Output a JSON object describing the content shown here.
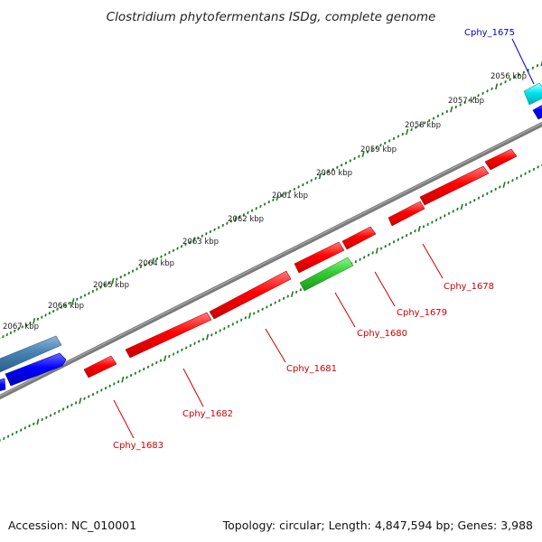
{
  "title": "Clostridium phytofermentans ISDg, complete genome",
  "footer": {
    "accession": "Accession: NC_010001",
    "summary": "Topology: circular; Length: 4,847,594 bp; Genes: 3,988"
  },
  "scale_labels": [
    "2056 kbp",
    "2057 kbp",
    "2058 kbp",
    "2059 kbp",
    "2060 kbp",
    "2061 kbp",
    "2062 kbp",
    "2063 kbp",
    "2064 kbp",
    "2065 kbp",
    "2066 kbp",
    "2067 kbp"
  ],
  "gene_labels": [
    {
      "id": "cphy-1675",
      "text": "Cphy_1675",
      "color": "#0000cc"
    },
    {
      "id": "cphy-1678",
      "text": "Cphy_1678",
      "color": "#cc0000"
    },
    {
      "id": "cphy-1679",
      "text": "Cphy_1679",
      "color": "#cc0000"
    },
    {
      "id": "cphy-1680",
      "text": "Cphy_1680",
      "color": "#cc0000"
    },
    {
      "id": "cphy-1681",
      "text": "Cphy_1681",
      "color": "#cc0000"
    },
    {
      "id": "cphy-1682",
      "text": "Cphy_1682",
      "color": "#cc0000"
    },
    {
      "id": "cphy-1683",
      "text": "Cphy_1683",
      "color": "#cc0000"
    }
  ],
  "colors": {
    "backbone": "#808080",
    "ticks": "#1e7a1e",
    "reverse_gene": "#ff0000",
    "highlight_gene": "#33cc33",
    "forward_gene": "#0000ff",
    "steel_gene": "#4682b4",
    "cyan_gene": "#00e5ee"
  }
}
